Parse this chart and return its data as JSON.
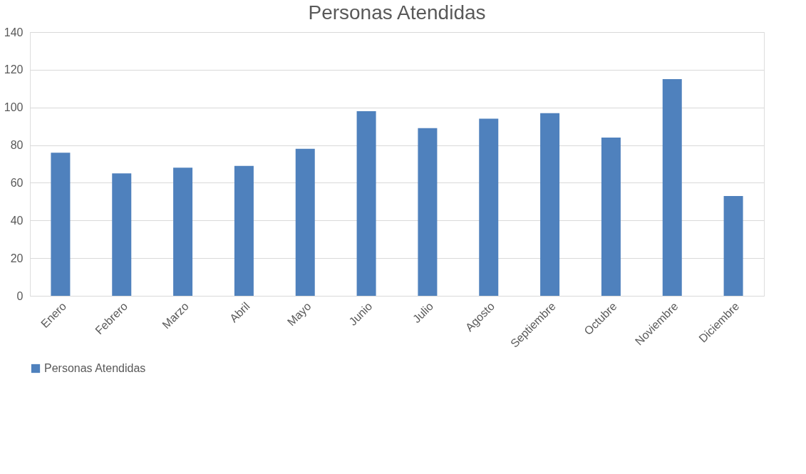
{
  "chart_data": {
    "type": "bar",
    "title": "Personas Atendidas",
    "categories": [
      "Enero",
      "Febrero",
      "Marzo",
      "Abril",
      "Mayo",
      "Junio",
      "Julio",
      "Agosto",
      "Septiembre",
      "Octubre",
      "Noviembre",
      "Diciembre"
    ],
    "series": [
      {
        "name": "Personas Atendidas",
        "color": "#4f81bd",
        "values": [
          76,
          65,
          68,
          69,
          78,
          98,
          89,
          94,
          97,
          84,
          115,
          53
        ]
      }
    ],
    "ylim": [
      0,
      140
    ],
    "yticks": [
      0,
      20,
      40,
      60,
      80,
      100,
      120,
      140
    ],
    "grid": "y",
    "legend": "bottom"
  }
}
